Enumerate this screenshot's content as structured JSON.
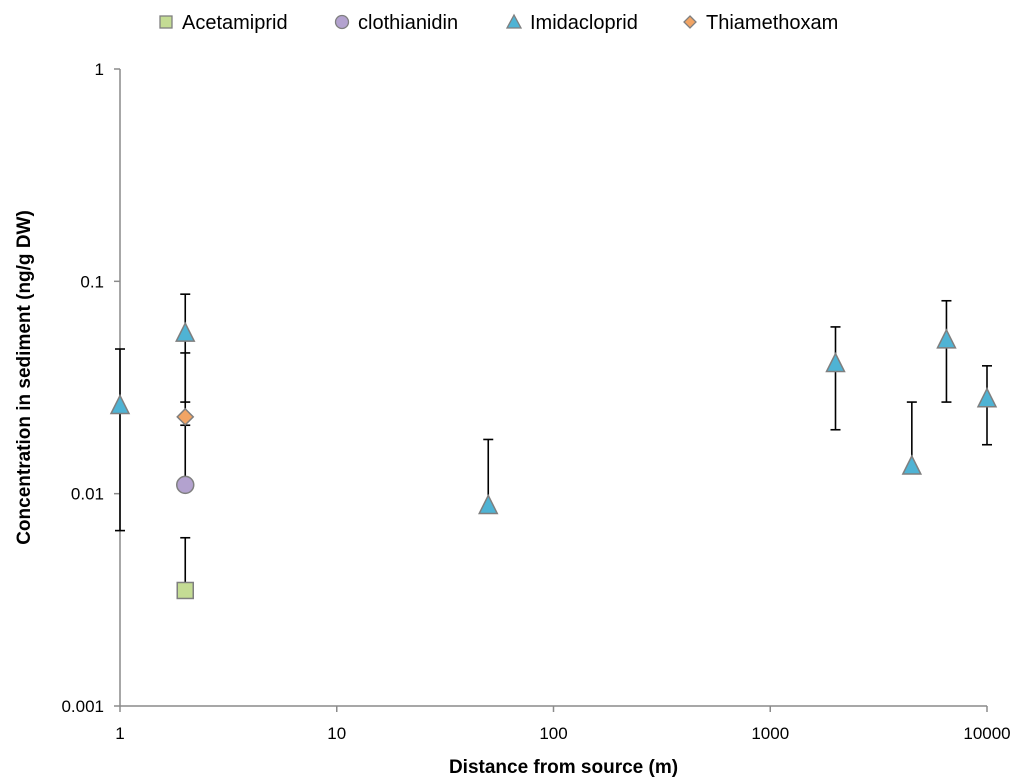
{
  "chart_data": {
    "type": "scatter",
    "xscale": "log",
    "yscale": "log",
    "xlabel": "Distance from source (m)",
    "ylabel": "Concentration in sediment (ng/g DW)",
    "xlim": [
      1,
      10000
    ],
    "ylim": [
      0.001,
      1
    ],
    "x_ticks": [
      "1",
      "10",
      "100",
      "1000",
      "10000"
    ],
    "y_ticks": [
      "0.001",
      "0.01",
      "0.1",
      "1"
    ],
    "grid": false,
    "legend_position": "top",
    "series": [
      {
        "name": "Acetamiprid",
        "marker": "square",
        "color": "#c4dc94",
        "points": [
          {
            "x": 2,
            "y": 0.0035,
            "err_low": 0.0035,
            "err_high": 0.0062
          }
        ]
      },
      {
        "name": "clothianidin",
        "marker": "circle",
        "color": "#b3a2cf",
        "points": [
          {
            "x": 2,
            "y": 0.011,
            "err_low": 0.011,
            "err_high": 0.021
          }
        ]
      },
      {
        "name": "Imidacloprid",
        "marker": "triangle",
        "color": "#4fb3d4",
        "points": [
          {
            "x": 1,
            "y": 0.026,
            "err_low": 0.0067,
            "err_high": 0.048
          },
          {
            "x": 2,
            "y": 0.057,
            "err_low": 0.027,
            "err_high": 0.087
          },
          {
            "x": 50,
            "y": 0.0088,
            "err_low": 0.0088,
            "err_high": 0.018
          },
          {
            "x": 2000,
            "y": 0.041,
            "err_low": 0.02,
            "err_high": 0.061
          },
          {
            "x": 4500,
            "y": 0.0135,
            "err_low": 0.0135,
            "err_high": 0.027
          },
          {
            "x": 6500,
            "y": 0.053,
            "err_low": 0.027,
            "err_high": 0.081
          },
          {
            "x": 10000,
            "y": 0.028,
            "err_low": 0.017,
            "err_high": 0.04
          }
        ]
      },
      {
        "name": "Thiamethoxam",
        "marker": "diamond",
        "color": "#f1a464",
        "points": [
          {
            "x": 2,
            "y": 0.023,
            "err_low": 0.023,
            "err_high": 0.046
          }
        ]
      }
    ]
  }
}
